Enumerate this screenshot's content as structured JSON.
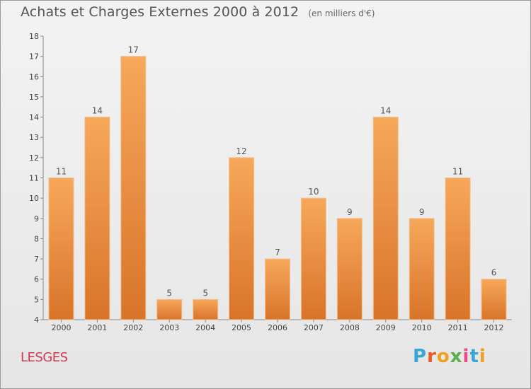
{
  "chart_data": {
    "type": "bar",
    "title": "Achats et Charges Externes 2000 à 2012",
    "subtitle": "(en milliers d'€)",
    "categories": [
      "2000",
      "2001",
      "2002",
      "2003",
      "2004",
      "2005",
      "2006",
      "2007",
      "2008",
      "2009",
      "2010",
      "2011",
      "2012"
    ],
    "values": [
      11,
      14,
      17,
      5,
      5,
      12,
      7,
      10,
      9,
      14,
      9,
      11,
      6
    ],
    "ylim": [
      4,
      18
    ],
    "yticks": [
      4,
      5,
      6,
      7,
      8,
      9,
      10,
      11,
      12,
      13,
      14,
      15,
      16,
      17,
      18
    ],
    "grid": false,
    "bar_color_top": "#f7a85a",
    "bar_color_bottom": "#d8742a"
  },
  "footer": {
    "commune": "LESGES",
    "brand_letters": [
      "P",
      "r",
      "o",
      "x",
      "i",
      "t",
      "i"
    ],
    "brand_colors": [
      "#3aa6d8",
      "#e85a2a",
      "#f0a020",
      "#5ab04a",
      "#e84a8a",
      "#3aa6d8",
      "#f0a020"
    ]
  }
}
